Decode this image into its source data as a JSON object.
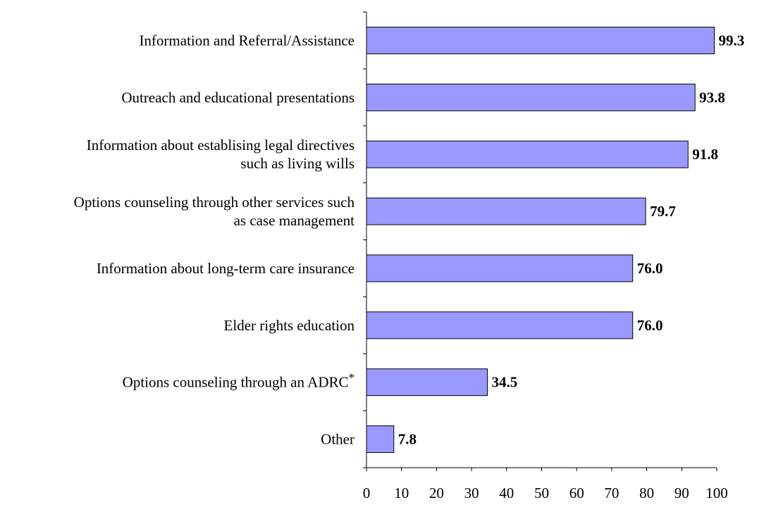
{
  "chart_data": {
    "type": "bar",
    "orientation": "horizontal",
    "categories": [
      [
        "Information and Referral/Assistance"
      ],
      [
        "Outreach and educational presentations"
      ],
      [
        "Information about establising legal directives",
        "such as living wills"
      ],
      [
        "Options counseling through other services such",
        "as case management"
      ],
      [
        "Information about long-term care insurance"
      ],
      [
        "Elder rights education"
      ],
      [
        "Options counseling through an ADRC*"
      ],
      [
        "Other"
      ]
    ],
    "values": [
      99.3,
      93.8,
      91.8,
      79.7,
      76.0,
      76.0,
      34.5,
      7.8
    ],
    "value_labels": [
      "99.3",
      "93.8",
      "91.8",
      "79.7",
      "76.0",
      "76.0",
      "34.5",
      "7.8"
    ],
    "xlim": [
      0,
      100
    ],
    "x_ticks": [
      0,
      10,
      20,
      30,
      40,
      50,
      60,
      70,
      80,
      90,
      100
    ],
    "bar_color": "#9999ff",
    "title": "",
    "xlabel": "",
    "ylabel": "",
    "grid": false,
    "legend": "none"
  }
}
